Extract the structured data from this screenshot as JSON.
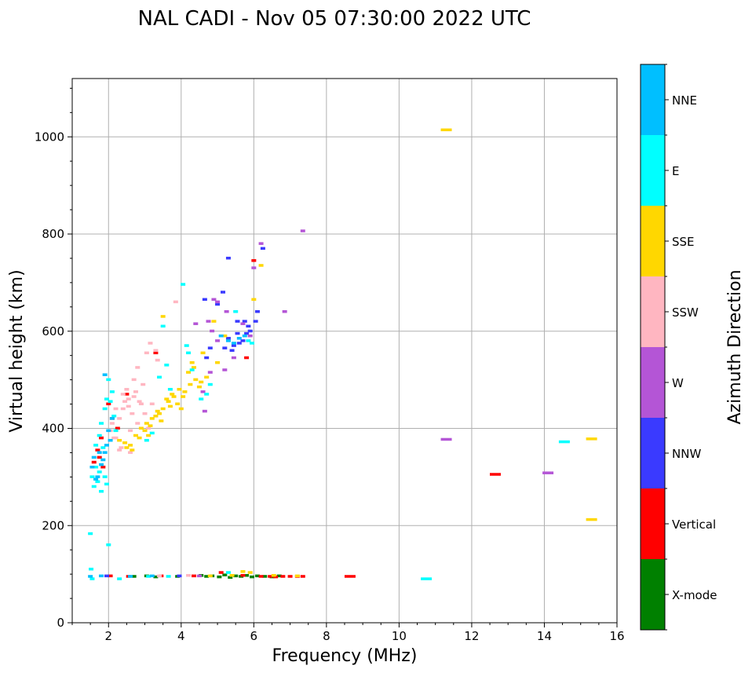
{
  "chart_data": {
    "type": "scatter",
    "title": "NAL CADI - Nov 05 07:30:00 2022 UTC",
    "xlabel": "Frequency (MHz)",
    "ylabel": "Virtual height (km)",
    "xlim": [
      1,
      16
    ],
    "ylim": [
      0,
      1120
    ],
    "x_ticks": [
      2,
      4,
      6,
      8,
      10,
      12,
      14,
      16
    ],
    "y_ticks": [
      0,
      200,
      400,
      600,
      800,
      1000
    ],
    "grid": true,
    "colorbar": {
      "label": "Azimuth Direction",
      "categories": [
        {
          "name": "X-mode",
          "color": "#008000"
        },
        {
          "name": "Vertical",
          "color": "#ff0000"
        },
        {
          "name": "NNW",
          "color": "#3a3aff"
        },
        {
          "name": "W",
          "color": "#b455d6"
        },
        {
          "name": "SSW",
          "color": "#ffb6c1"
        },
        {
          "name": "SSE",
          "color": "#ffd700"
        },
        {
          "name": "E",
          "color": "#00ffff"
        },
        {
          "name": "NNE",
          "color": "#00bfff"
        }
      ]
    },
    "series": [
      {
        "name": "X-mode",
        "points": [
          [
            4.55,
            97
          ],
          [
            4.7,
            95
          ],
          [
            4.85,
            96
          ],
          [
            5.05,
            94
          ],
          [
            5.2,
            98
          ],
          [
            5.35,
            93
          ],
          [
            5.5,
            96
          ],
          [
            5.65,
            95
          ],
          [
            5.8,
            97
          ],
          [
            5.95,
            94
          ],
          [
            6.1,
            96
          ],
          [
            6.3,
            95
          ],
          [
            6.5,
            94
          ],
          [
            6.7,
            96
          ],
          [
            2.7,
            95
          ],
          [
            3.05,
            96
          ],
          [
            3.3,
            94
          ],
          [
            3.9,
            95
          ]
        ]
      },
      {
        "name": "Vertical",
        "points": [
          [
            1.6,
            330
          ],
          [
            1.7,
            355
          ],
          [
            1.75,
            340
          ],
          [
            1.8,
            380
          ],
          [
            1.85,
            320
          ],
          [
            2.0,
            450
          ],
          [
            2.1,
            420
          ],
          [
            2.25,
            400
          ],
          [
            2.5,
            470
          ],
          [
            3.3,
            555
          ],
          [
            6.0,
            745
          ],
          [
            5.8,
            545
          ],
          [
            6.2,
            95
          ],
          [
            6.45,
            95
          ],
          [
            6.6,
            94
          ],
          [
            6.8,
            95
          ],
          [
            7.0,
            95
          ],
          [
            7.2,
            95
          ],
          [
            7.35,
            95
          ],
          [
            5.1,
            103
          ],
          [
            5.7,
            97
          ],
          [
            2.05,
            96
          ],
          [
            2.55,
            95
          ],
          [
            3.45,
            96
          ],
          [
            4.35,
            96
          ],
          [
            8.65,
            95
          ],
          [
            12.65,
            305
          ]
        ]
      },
      {
        "name": "NNW",
        "points": [
          [
            5.3,
            585
          ],
          [
            5.45,
            570
          ],
          [
            5.55,
            595
          ],
          [
            5.7,
            580
          ],
          [
            5.85,
            610
          ],
          [
            5.9,
            600
          ],
          [
            5.75,
            620
          ],
          [
            5.4,
            560
          ],
          [
            5.2,
            565
          ],
          [
            5.6,
            575
          ],
          [
            5.15,
            680
          ],
          [
            5.8,
            595
          ],
          [
            6.05,
            620
          ],
          [
            4.7,
            545
          ],
          [
            4.65,
            665
          ],
          [
            5.3,
            750
          ],
          [
            6.25,
            770
          ],
          [
            6.1,
            640
          ],
          [
            5.0,
            655
          ],
          [
            4.8,
            565
          ],
          [
            3.95,
            96
          ],
          [
            5.55,
            620
          ],
          [
            1.95,
            96
          ]
        ]
      },
      {
        "name": "W",
        "points": [
          [
            7.35,
            806
          ],
          [
            6.2,
            780
          ],
          [
            6.85,
            640
          ],
          [
            5.7,
            615
          ],
          [
            5.9,
            590
          ],
          [
            5.0,
            580
          ],
          [
            5.45,
            545
          ],
          [
            5.2,
            520
          ],
          [
            4.85,
            600
          ],
          [
            4.4,
            615
          ],
          [
            4.6,
            475
          ],
          [
            4.8,
            515
          ],
          [
            4.65,
            435
          ],
          [
            4.75,
            620
          ],
          [
            4.9,
            665
          ],
          [
            5.0,
            660
          ],
          [
            5.25,
            640
          ],
          [
            11.3,
            377
          ],
          [
            14.1,
            308
          ],
          [
            6.0,
            730
          ],
          [
            4.5,
            96
          ]
        ]
      },
      {
        "name": "SSW",
        "points": [
          [
            2.05,
            395
          ],
          [
            2.1,
            410
          ],
          [
            2.2,
            380
          ],
          [
            2.3,
            420
          ],
          [
            2.4,
            440
          ],
          [
            2.55,
            460
          ],
          [
            2.65,
            430
          ],
          [
            2.75,
            475
          ],
          [
            2.85,
            455
          ],
          [
            2.95,
            490
          ],
          [
            2.35,
            360
          ],
          [
            2.6,
            395
          ],
          [
            2.8,
            410
          ],
          [
            3.0,
            430
          ],
          [
            3.1,
            400
          ],
          [
            3.2,
            450
          ],
          [
            2.5,
            480
          ],
          [
            2.7,
            500
          ],
          [
            2.45,
            455
          ],
          [
            3.05,
            555
          ],
          [
            3.15,
            575
          ],
          [
            3.3,
            560
          ],
          [
            2.8,
            525
          ],
          [
            3.85,
            660
          ],
          [
            2.9,
            450
          ],
          [
            2.2,
            440
          ],
          [
            2.4,
            470
          ],
          [
            2.15,
            380
          ],
          [
            2.3,
            355
          ],
          [
            2.6,
            350
          ],
          [
            3.35,
            540
          ],
          [
            2.7,
            465
          ],
          [
            2.55,
            445
          ],
          [
            3.4,
            96
          ],
          [
            4.2,
            97
          ]
        ]
      },
      {
        "name": "SSE",
        "points": [
          [
            2.3,
            375
          ],
          [
            2.45,
            370
          ],
          [
            2.6,
            365
          ],
          [
            2.75,
            385
          ],
          [
            2.9,
            400
          ],
          [
            3.05,
            410
          ],
          [
            3.2,
            420
          ],
          [
            3.35,
            435
          ],
          [
            3.5,
            440
          ],
          [
            3.65,
            455
          ],
          [
            3.8,
            465
          ],
          [
            3.95,
            480
          ],
          [
            4.1,
            475
          ],
          [
            4.25,
            490
          ],
          [
            4.4,
            500
          ],
          [
            4.55,
            495
          ],
          [
            4.7,
            505
          ],
          [
            3.0,
            395
          ],
          [
            3.15,
            405
          ],
          [
            3.4,
            430
          ],
          [
            3.6,
            460
          ],
          [
            3.75,
            470
          ],
          [
            3.9,
            450
          ],
          [
            4.05,
            465
          ],
          [
            4.2,
            515
          ],
          [
            4.35,
            525
          ],
          [
            4.5,
            485
          ],
          [
            2.5,
            360
          ],
          [
            2.65,
            355
          ],
          [
            2.85,
            380
          ],
          [
            3.1,
            385
          ],
          [
            3.3,
            425
          ],
          [
            3.45,
            415
          ],
          [
            3.7,
            445
          ],
          [
            4.0,
            440
          ],
          [
            4.3,
            535
          ],
          [
            4.6,
            555
          ],
          [
            5.0,
            535
          ],
          [
            5.2,
            590
          ],
          [
            3.5,
            630
          ],
          [
            6.0,
            665
          ],
          [
            6.2,
            735
          ],
          [
            11.3,
            1014
          ],
          [
            15.3,
            378
          ],
          [
            15.3,
            212
          ],
          [
            4.9,
            620
          ],
          [
            5.7,
            105
          ],
          [
            5.9,
            103
          ],
          [
            4.8,
            96
          ],
          [
            5.4,
            97
          ],
          [
            6.55,
            97
          ],
          [
            7.2,
            96
          ]
        ]
      },
      {
        "name": "E",
        "points": [
          [
            1.55,
            300
          ],
          [
            1.6,
            280
          ],
          [
            1.65,
            320
          ],
          [
            1.7,
            290
          ],
          [
            1.75,
            310
          ],
          [
            1.8,
            270
          ],
          [
            1.85,
            360
          ],
          [
            1.9,
            300
          ],
          [
            1.95,
            285
          ],
          [
            1.65,
            365
          ],
          [
            1.75,
            385
          ],
          [
            1.8,
            410
          ],
          [
            1.9,
            440
          ],
          [
            1.95,
            460
          ],
          [
            2.0,
            500
          ],
          [
            2.05,
            455
          ],
          [
            2.1,
            475
          ],
          [
            2.15,
            425
          ],
          [
            2.2,
            395
          ],
          [
            3.6,
            530
          ],
          [
            3.5,
            610
          ],
          [
            4.05,
            696
          ],
          [
            4.2,
            555
          ],
          [
            4.15,
            570
          ],
          [
            4.55,
            460
          ],
          [
            4.7,
            470
          ],
          [
            3.05,
            375
          ],
          [
            3.2,
            390
          ],
          [
            3.7,
            480
          ],
          [
            4.8,
            490
          ],
          [
            5.85,
            580
          ],
          [
            5.95,
            575
          ],
          [
            5.5,
            640
          ],
          [
            1.5,
            183
          ],
          [
            2.0,
            160
          ],
          [
            1.52,
            110
          ],
          [
            1.55,
            90
          ],
          [
            2.3,
            90
          ],
          [
            3.1,
            95
          ],
          [
            3.65,
            95
          ],
          [
            10.75,
            90
          ],
          [
            14.55,
            372
          ],
          [
            5.3,
            103
          ],
          [
            4.3,
            520
          ],
          [
            3.4,
            505
          ]
        ]
      },
      {
        "name": "NNE",
        "points": [
          [
            1.55,
            320
          ],
          [
            1.6,
            340
          ],
          [
            1.7,
            300
          ],
          [
            1.8,
            325
          ],
          [
            1.9,
            350
          ],
          [
            2.0,
            395
          ],
          [
            2.05,
            375
          ],
          [
            1.65,
            295
          ],
          [
            1.75,
            350
          ],
          [
            1.85,
            335
          ],
          [
            1.95,
            365
          ],
          [
            2.1,
            420
          ],
          [
            1.9,
            510
          ],
          [
            5.3,
            580
          ],
          [
            5.6,
            585
          ],
          [
            5.75,
            590
          ],
          [
            5.45,
            575
          ],
          [
            5.1,
            590
          ],
          [
            1.5,
            95
          ],
          [
            1.8,
            96
          ],
          [
            2.6,
            95
          ],
          [
            3.2,
            96
          ]
        ]
      }
    ]
  }
}
